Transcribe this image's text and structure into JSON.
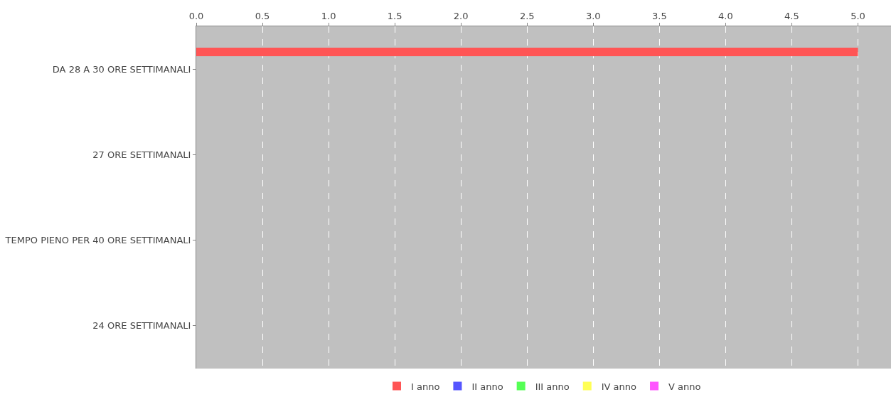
{
  "chart_data": {
    "type": "bar",
    "orientation": "horizontal",
    "categories": [
      "DA 28 A 30 ORE SETTIMANALI",
      "27 ORE SETTIMANALI",
      "TEMPO PIENO PER 40 ORE SETTIMANALI",
      "24 ORE SETTIMANALI"
    ],
    "series": [
      {
        "name": "I anno",
        "color": "#ff5555",
        "values": [
          5,
          null,
          null,
          null
        ]
      },
      {
        "name": "II anno",
        "color": "#5555ff",
        "values": [
          null,
          null,
          null,
          null
        ]
      },
      {
        "name": "III anno",
        "color": "#55ff55",
        "values": [
          null,
          null,
          null,
          null
        ]
      },
      {
        "name": "IV anno",
        "color": "#ffff55",
        "values": [
          null,
          null,
          null,
          null
        ]
      },
      {
        "name": "V anno",
        "color": "#ff55ff",
        "values": [
          null,
          null,
          null,
          null
        ]
      }
    ],
    "xlim": [
      0,
      5.25
    ],
    "xticks": [
      {
        "value": 0,
        "label": "0.0"
      },
      {
        "value": 0.5,
        "label": "0.5"
      },
      {
        "value": 1,
        "label": "1.0"
      },
      {
        "value": 1.5,
        "label": "1.5"
      },
      {
        "value": 2,
        "label": "2.0"
      },
      {
        "value": 2.5,
        "label": "2.5"
      },
      {
        "value": 3,
        "label": "3.0"
      },
      {
        "value": 3.5,
        "label": "3.5"
      },
      {
        "value": 4,
        "label": "4.0"
      },
      {
        "value": 4.5,
        "label": "4.5"
      },
      {
        "value": 5,
        "label": "5.0"
      }
    ],
    "grid": "x",
    "legend": "bottom"
  }
}
